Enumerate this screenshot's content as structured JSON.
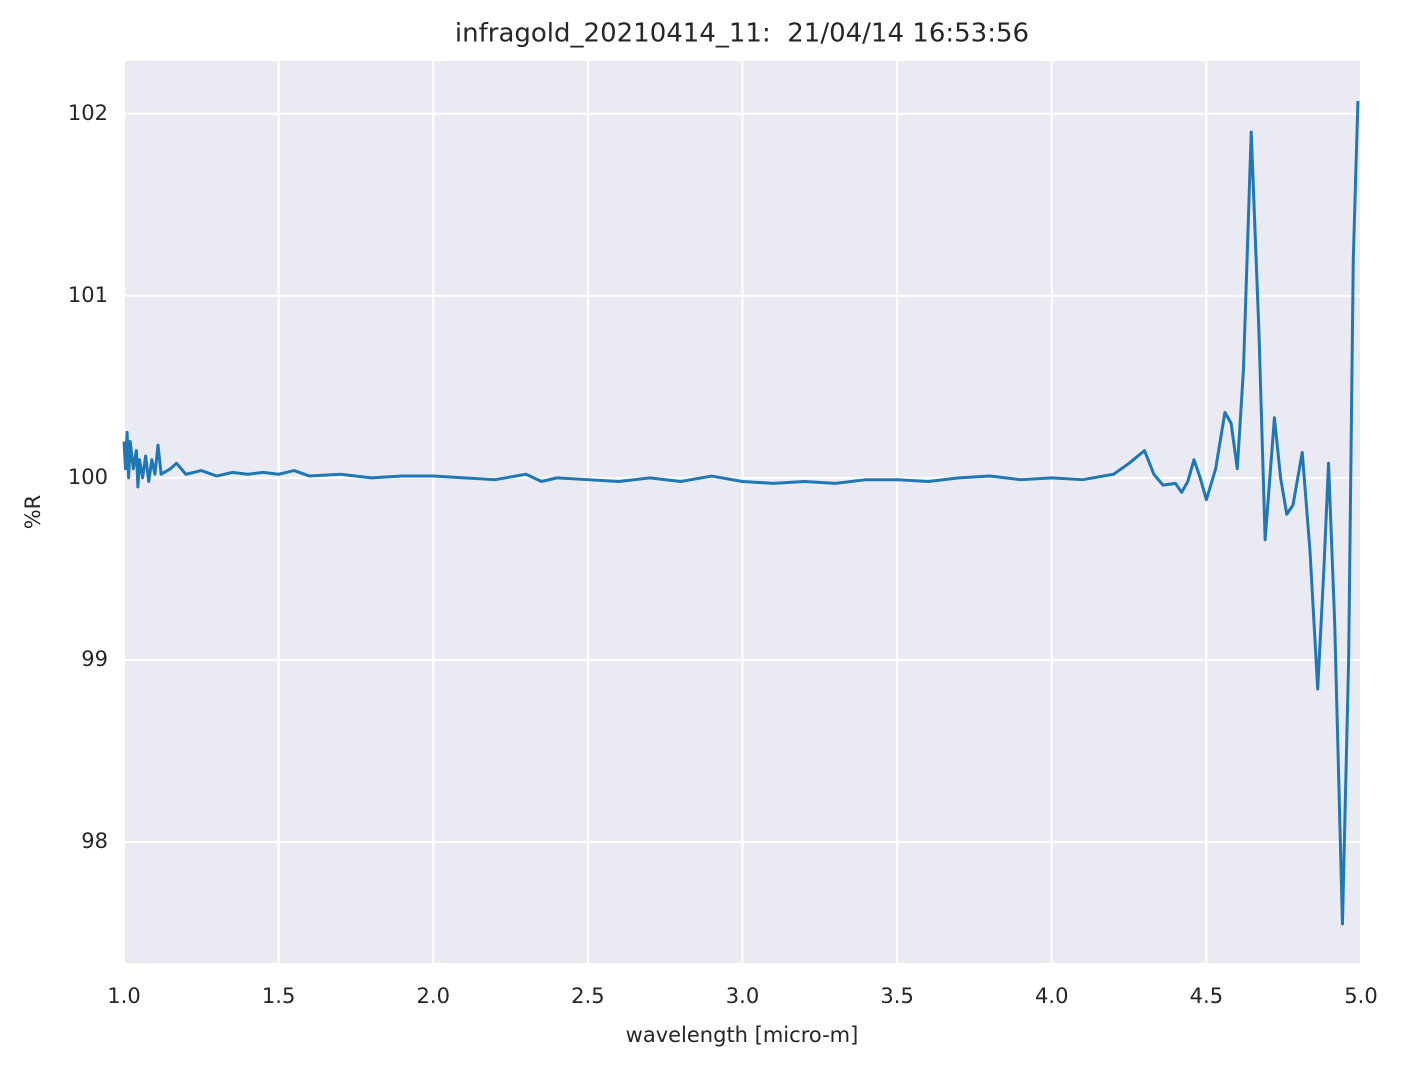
{
  "chart_data": {
    "type": "line",
    "title": "infragold_20210414_11:  21/04/14 16:53:56",
    "xlabel": "wavelength [micro-m]",
    "ylabel": "%R",
    "color": "#1f77b4",
    "grid": true,
    "xlim": [
      1,
      5
    ],
    "ylim": [
      97.335,
      102.29
    ],
    "xticks": [
      {
        "value": 1,
        "label": "1.0"
      },
      1.5,
      {
        "value": 2,
        "label": "2.0"
      },
      2.5,
      {
        "value": 3,
        "label": "3.0"
      },
      3.5,
      {
        "value": 4,
        "label": "4.0"
      },
      4.5,
      {
        "value": 5,
        "label": "5.0"
      }
    ],
    "yticks": [
      98,
      99,
      100,
      101,
      102
    ],
    "x": [
      1.0,
      1.005,
      1.01,
      1.015,
      1.02,
      1.03,
      1.04,
      1.045,
      1.05,
      1.06,
      1.07,
      1.08,
      1.09,
      1.1,
      1.11,
      1.12,
      1.15,
      1.17,
      1.2,
      1.25,
      1.3,
      1.35,
      1.4,
      1.45,
      1.5,
      1.55,
      1.6,
      1.7,
      1.8,
      1.9,
      2.0,
      2.1,
      2.2,
      2.3,
      2.35,
      2.4,
      2.5,
      2.6,
      2.7,
      2.8,
      2.9,
      3.0,
      3.1,
      3.2,
      3.3,
      3.4,
      3.5,
      3.6,
      3.7,
      3.8,
      3.9,
      4.0,
      4.1,
      4.2,
      4.25,
      4.3,
      4.33,
      4.36,
      4.4,
      4.42,
      4.44,
      4.46,
      4.48,
      4.5,
      4.53,
      4.56,
      4.58,
      4.6,
      4.62,
      4.645,
      4.67,
      4.69,
      4.72,
      4.74,
      4.76,
      4.78,
      4.81,
      4.835,
      4.86,
      4.88,
      4.895,
      4.915,
      4.94,
      4.96,
      4.975,
      4.99
    ],
    "values": [
      100.2,
      100.05,
      100.25,
      100.0,
      100.2,
      100.05,
      100.15,
      99.95,
      100.1,
      100.0,
      100.12,
      99.98,
      100.1,
      100.02,
      100.18,
      100.02,
      100.05,
      100.08,
      100.02,
      100.04,
      100.01,
      100.03,
      100.02,
      100.03,
      100.02,
      100.04,
      100.01,
      100.02,
      100.0,
      100.01,
      100.01,
      100.0,
      99.99,
      100.02,
      99.98,
      100.0,
      99.99,
      99.98,
      100.0,
      99.98,
      100.01,
      99.98,
      99.97,
      99.98,
      99.97,
      99.99,
      99.99,
      99.98,
      100.0,
      100.01,
      99.99,
      100.0,
      99.99,
      100.02,
      100.08,
      100.15,
      100.02,
      99.96,
      99.97,
      99.92,
      99.98,
      100.1,
      100.0,
      99.88,
      100.05,
      100.36,
      100.3,
      100.05,
      100.6,
      101.9,
      100.8,
      99.66,
      100.33,
      100.0,
      99.8,
      99.85,
      100.14,
      99.6,
      98.84,
      99.5,
      100.08,
      99.2,
      97.55,
      99.0,
      101.2,
      102.07
    ]
  }
}
